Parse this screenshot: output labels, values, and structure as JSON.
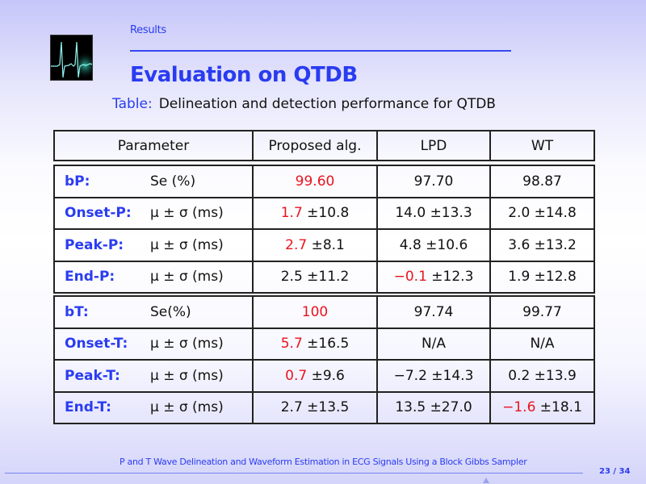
{
  "header": {
    "section": "Results",
    "title": "Evaluation on QTDB"
  },
  "caption": {
    "label": "Table:",
    "text": "Delineation and detection performance for QTDB"
  },
  "table": {
    "headers": [
      "Parameter",
      "Proposed alg.",
      "LPD",
      "WT"
    ],
    "group1": [
      {
        "name": "bP:",
        "metric": "Se (%)",
        "cells": [
          {
            "red": "99.60",
            "rest": ""
          },
          {
            "red": "",
            "rest": "97.70"
          },
          {
            "red": "",
            "rest": "98.87"
          }
        ]
      },
      {
        "name": "Onset-P:",
        "metric": "μ ± σ (ms)",
        "cells": [
          {
            "red": "1.7",
            "rest": " ±10.8"
          },
          {
            "red": "",
            "rest": "14.0 ±13.3"
          },
          {
            "red": "",
            "rest": "2.0 ±14.8"
          }
        ]
      },
      {
        "name": "Peak-P:",
        "metric": "μ ± σ (ms)",
        "cells": [
          {
            "red": "2.7",
            "rest": " ±8.1"
          },
          {
            "red": "",
            "rest": "4.8 ±10.6"
          },
          {
            "red": "",
            "rest": "3.6 ±13.2"
          }
        ]
      },
      {
        "name": "End-P:",
        "metric": "μ ± σ (ms)",
        "cells": [
          {
            "red": "",
            "rest": "2.5 ±11.2"
          },
          {
            "red": "−0.1",
            "rest": " ±12.3"
          },
          {
            "red": "",
            "rest": "1.9 ±12.8"
          }
        ]
      }
    ],
    "group2": [
      {
        "name": "bT:",
        "metric": "Se(%)",
        "cells": [
          {
            "red": "100",
            "rest": ""
          },
          {
            "red": "",
            "rest": "97.74"
          },
          {
            "red": "",
            "rest": "99.77"
          }
        ]
      },
      {
        "name": "Onset-T:",
        "metric": "μ ± σ (ms)",
        "cells": [
          {
            "red": "5.7",
            "rest": " ±16.5"
          },
          {
            "red": "",
            "rest": "N/A"
          },
          {
            "red": "",
            "rest": "N/A"
          }
        ]
      },
      {
        "name": "Peak-T:",
        "metric": "μ ± σ (ms)",
        "cells": [
          {
            "red": "0.7",
            "rest": " ±9.6"
          },
          {
            "red": "",
            "rest": "−7.2 ±14.3"
          },
          {
            "red": "",
            "rest": "0.2 ±13.9"
          }
        ]
      },
      {
        "name": "End-T:",
        "metric": "μ ± σ (ms)",
        "cells": [
          {
            "red": "",
            "rest": "2.7 ±13.5"
          },
          {
            "red": "",
            "rest": "13.5 ±27.0"
          },
          {
            "red": "−1.6",
            "rest": " ±18.1"
          }
        ]
      }
    ]
  },
  "footer": {
    "title": "P and T Wave Delineation and Waveform Estimation in ECG Signals Using a Block Gibbs Sampler",
    "page": "23 / 34"
  },
  "colors": {
    "accent": "#2a3cf0",
    "highlight": "#e8141e"
  }
}
